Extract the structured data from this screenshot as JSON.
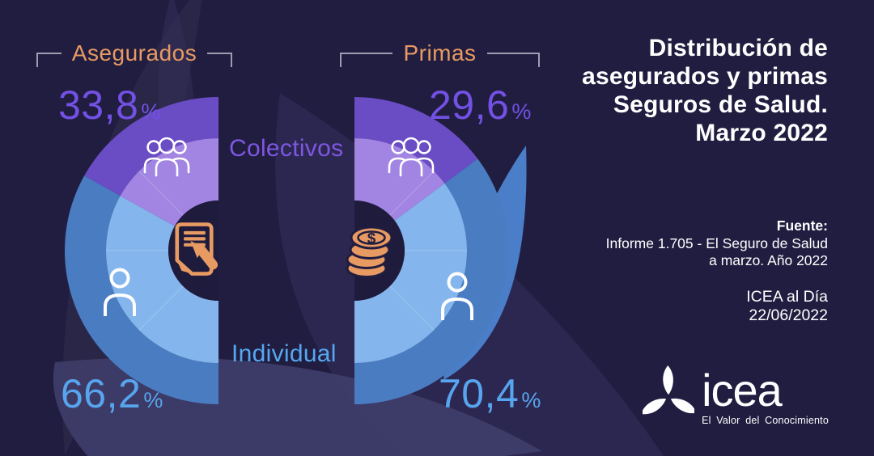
{
  "colors": {
    "background": "#211d40",
    "accent_orange": "#e79a62",
    "bracket_line": "#9d9cb0",
    "colectivos_outer": "#6a4cc4",
    "colectivos_inner": "#a285e2",
    "individual_outer": "#4a7cc2",
    "individual_inner": "#84b5ec",
    "pct_purple": "#7251e4",
    "pct_blue": "#57a5ee",
    "label_colectivos": "#7e57e2",
    "label_individual": "#55a8f0",
    "donut_hole": "#1f1b3d",
    "text_white": "#ffffff"
  },
  "chart_data": [
    {
      "type": "pie",
      "variant": "half_donut_open_right",
      "title": "Asegurados",
      "units": "%",
      "categories": [
        "Colectivos",
        "Individual"
      ],
      "values": [
        33.8,
        66.2
      ],
      "segments": [
        {
          "label": "Colectivos",
          "value": 33.8,
          "display_number": "33,8",
          "display_symbol": "%"
        },
        {
          "label": "Individual",
          "value": 66.2,
          "display_number": "66,2",
          "display_symbol": "%"
        }
      ],
      "center_icon": "document-pen",
      "legend_position": "inline"
    },
    {
      "type": "pie",
      "variant": "half_donut_open_left",
      "title": "Primas",
      "units": "%",
      "categories": [
        "Colectivos",
        "Individual"
      ],
      "values": [
        29.6,
        70.4
      ],
      "segments": [
        {
          "label": "Colectivos",
          "value": 29.6,
          "display_number": "29,6",
          "display_symbol": "%"
        },
        {
          "label": "Individual",
          "value": 70.4,
          "display_number": "70,4",
          "display_symbol": "%"
        }
      ],
      "center_icon": "coins",
      "legend_position": "inline"
    }
  ],
  "shared_labels": {
    "colectivos": "Colectivos",
    "individual": "Individual"
  },
  "title": {
    "lines": [
      "Distribución de",
      "asegurados y primas",
      "Seguros de Salud.",
      "Marzo 2022"
    ]
  },
  "source": {
    "label": "Fuente:",
    "line1": "Informe 1.705 - El Seguro de Salud",
    "line2": "a marzo. Año 2022",
    "publication": "ICEA al Día",
    "date": "22/06/2022"
  },
  "logo": {
    "name": "icea",
    "tagline": "El Valor del Conocimiento"
  },
  "icons": {
    "colectivos": "people-group-icon",
    "individual": "person-icon",
    "asegurados_center": "document-pen-icon",
    "primas_center": "coins-icon",
    "logo_mark": "icea-pinwheel-icon",
    "coins_symbol": "$"
  }
}
